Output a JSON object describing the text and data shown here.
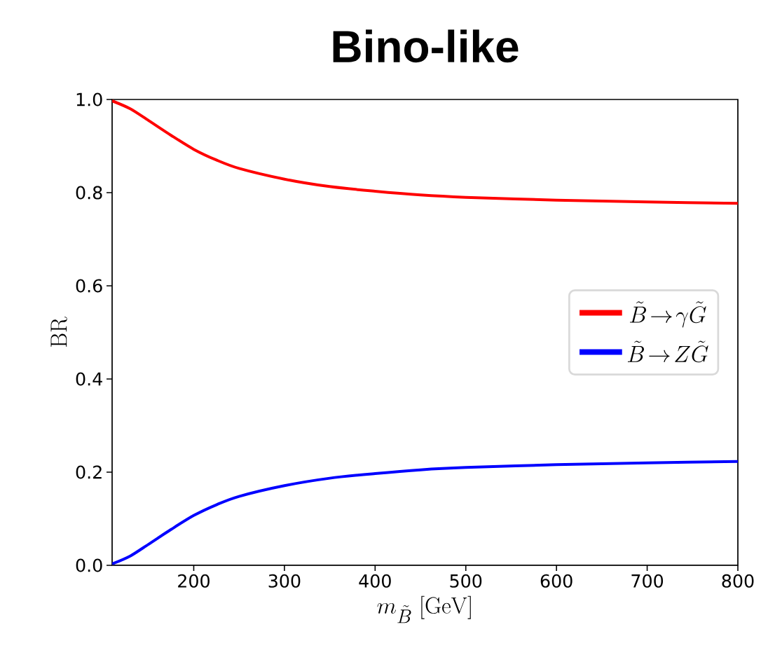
{
  "chart_data": {
    "type": "line",
    "title": "**Bino-like**",
    "xlabel": "m_{\\tilde{B}}\\;[\\mathrm{GeV}]",
    "ylabel": "\\mathrm{BR}",
    "x": [
      110,
      130,
      150,
      175,
      200,
      225,
      250,
      300,
      350,
      400,
      450,
      500,
      600,
      700,
      800
    ],
    "series": [
      {
        "name": "\\tilde{B}\\!\\rightarrow\\!\\gamma\\tilde{G}",
        "color": "#ff0000",
        "values": [
          0.997,
          0.98,
          0.955,
          0.923,
          0.893,
          0.87,
          0.852,
          0.829,
          0.813,
          0.803,
          0.795,
          0.79,
          0.784,
          0.78,
          0.777
        ]
      },
      {
        "name": "\\tilde{B}\\!\\rightarrow\\! Z\\tilde{G}",
        "color": "#0000ff",
        "values": [
          0.003,
          0.02,
          0.045,
          0.077,
          0.107,
          0.13,
          0.148,
          0.171,
          0.187,
          0.197,
          0.205,
          0.21,
          0.216,
          0.22,
          0.223
        ]
      }
    ],
    "xlim": [
      110,
      800
    ],
    "ylim": [
      0,
      1
    ],
    "xticks": [
      200,
      300,
      400,
      500,
      600,
      700,
      800
    ],
    "yticks": [
      {
        "value": 0,
        "label": "0.0"
      },
      0.2,
      0.4,
      0.6,
      0.8,
      {
        "value": 1,
        "label": "1.0"
      }
    ],
    "grid": false,
    "legend": "right",
    "marker": "none",
    "line_style": "solid"
  }
}
